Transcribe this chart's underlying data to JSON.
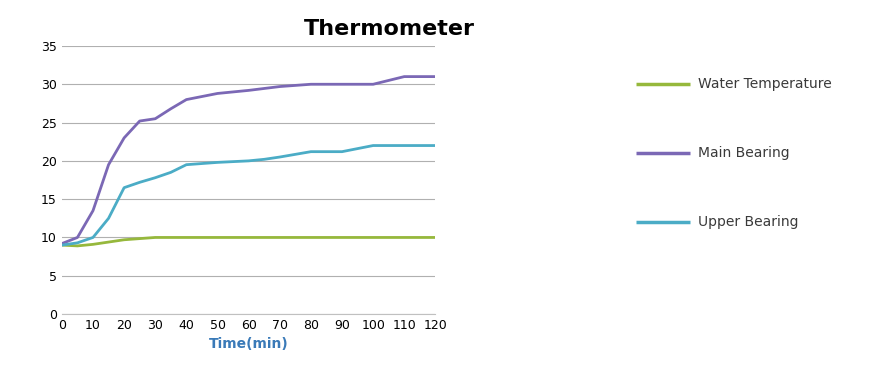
{
  "title": "Thermometer",
  "xlabel": "Time(min)",
  "xlim": [
    0,
    120
  ],
  "ylim": [
    0,
    35
  ],
  "yticks": [
    0,
    5,
    10,
    15,
    20,
    25,
    30,
    35
  ],
  "xticks": [
    0,
    10,
    20,
    30,
    40,
    50,
    60,
    70,
    80,
    90,
    100,
    110,
    120
  ],
  "water_temp": {
    "x": [
      0,
      5,
      10,
      15,
      20,
      30,
      40,
      50,
      60,
      70,
      80,
      90,
      100,
      110,
      120
    ],
    "y": [
      9.0,
      8.9,
      9.1,
      9.4,
      9.7,
      10.0,
      10.0,
      10.0,
      10.0,
      10.0,
      10.0,
      10.0,
      10.0,
      10.0,
      10.0
    ],
    "color": "#96b83c",
    "label": "Water Temperature",
    "linewidth": 2.0
  },
  "main_bearing": {
    "x": [
      0,
      5,
      10,
      15,
      20,
      25,
      30,
      35,
      40,
      50,
      60,
      70,
      80,
      90,
      100,
      110,
      120
    ],
    "y": [
      9.2,
      10.0,
      13.5,
      19.5,
      23.0,
      25.2,
      25.5,
      26.8,
      28.0,
      28.8,
      29.2,
      29.7,
      30.0,
      30.0,
      30.0,
      31.0,
      31.0
    ],
    "color": "#7b68b5",
    "label": "Main Bearing",
    "linewidth": 2.0
  },
  "upper_bearing": {
    "x": [
      0,
      5,
      10,
      15,
      20,
      25,
      30,
      35,
      40,
      50,
      60,
      65,
      70,
      80,
      90,
      100,
      110,
      120
    ],
    "y": [
      9.0,
      9.3,
      10.0,
      12.5,
      16.5,
      17.2,
      17.8,
      18.5,
      19.5,
      19.8,
      20.0,
      20.2,
      20.5,
      21.2,
      21.2,
      22.0,
      22.0,
      22.0
    ],
    "color": "#4bacc6",
    "label": "Upper Bearing",
    "linewidth": 2.0
  },
  "background_color": "#ffffff",
  "grid_color": "#b0b0b0",
  "title_fontsize": 16,
  "axis_fontsize": 10,
  "tick_fontsize": 9,
  "legend_fontsize": 10
}
